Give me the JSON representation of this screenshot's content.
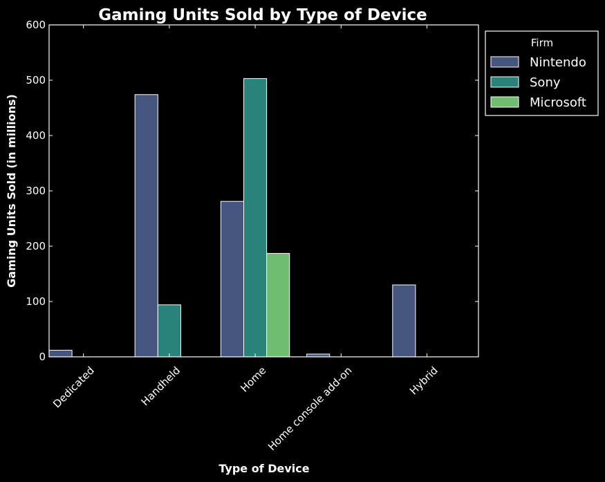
{
  "chart_data": {
    "type": "bar",
    "title": "Gaming Units Sold by Type of Device",
    "xlabel": "Type of Device",
    "ylabel": "Gaming Units Sold (in millions)",
    "categories": [
      "Dedicated",
      "Handheld",
      "Home",
      "Home console add-on",
      "Hybrid"
    ],
    "series": [
      {
        "name": "Nintendo",
        "color": "#46557f",
        "values": [
          12,
          474,
          281,
          5,
          130
        ]
      },
      {
        "name": "Sony",
        "color": "#2a837b",
        "values": [
          0,
          94,
          503,
          0,
          0
        ]
      },
      {
        "name": "Microsoft",
        "color": "#6fbd6e",
        "values": [
          0,
          0,
          187,
          0,
          0
        ]
      }
    ],
    "ylim": [
      0,
      600
    ],
    "yticks": [
      0,
      100,
      200,
      300,
      400,
      500,
      600
    ],
    "legend": {
      "title": "Firm",
      "position": "outside-top-right"
    },
    "grid": false,
    "background": "#000000",
    "foreground": "#ffffff"
  }
}
